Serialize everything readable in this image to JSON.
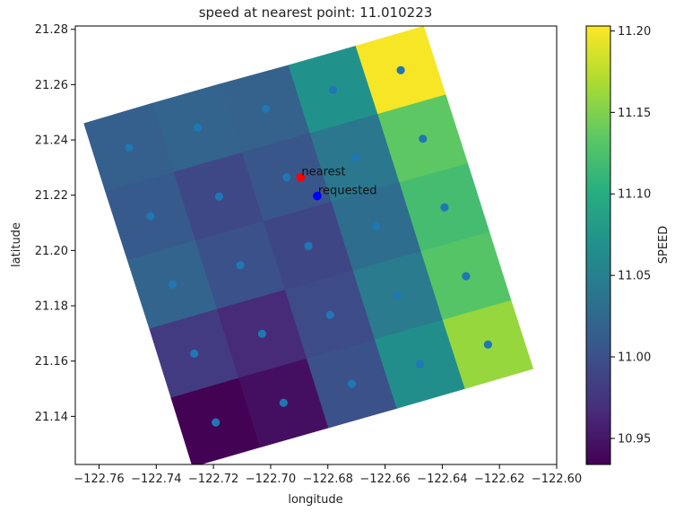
{
  "chart_data": {
    "type": "heatmap",
    "title": "speed at nearest point: 11.010223",
    "xlabel": "longitude",
    "ylabel": "latitude",
    "colorbar_label": "SPEED",
    "colormap": "viridis",
    "xlim": [
      -122.7683,
      -122.6
    ],
    "ylim": [
      21.1226,
      21.2812
    ],
    "clim": [
      10.934,
      11.203
    ],
    "x_ticks": [
      -122.76,
      -122.74,
      -122.72,
      -122.7,
      -122.68,
      -122.66,
      -122.64,
      -122.62,
      -122.6
    ],
    "x_tick_labels": [
      "−122.76",
      "−122.74",
      "−122.72",
      "−122.70",
      "−122.68",
      "−122.66",
      "−122.64",
      "−122.62",
      "−122.60"
    ],
    "y_ticks": [
      21.14,
      21.16,
      21.18,
      21.2,
      21.22,
      21.24,
      21.26,
      21.28
    ],
    "y_tick_labels": [
      "21.14",
      "21.16",
      "21.18",
      "21.20",
      "21.22",
      "21.24",
      "21.26",
      "21.28"
    ],
    "colorbar_ticks": [
      10.95,
      11.0,
      11.05,
      11.1,
      11.15,
      11.2
    ],
    "colorbar_tick_labels": [
      "10.95",
      "11.00",
      "11.05",
      "11.10",
      "11.15",
      "11.20"
    ],
    "grid": {
      "rows": 5,
      "cols": 5,
      "row_order": "top-to-bottom",
      "col_order": "left-to-right",
      "speed": [
        [
          11.015,
          11.02,
          11.018,
          11.07,
          11.2
        ],
        [
          11.01,
          10.992,
          11.005,
          11.04,
          11.135
        ],
        [
          11.02,
          11.0,
          10.99,
          11.03,
          11.12
        ],
        [
          10.98,
          10.965,
          10.995,
          11.045,
          11.13
        ],
        [
          10.935,
          10.945,
          11.0,
          11.065,
          11.16
        ]
      ],
      "centers": [
        [
          [
            -122.7495,
            21.2372
          ],
          [
            -122.7255,
            21.2445
          ],
          [
            -122.7017,
            21.2513
          ],
          [
            -122.6782,
            21.2581
          ],
          [
            -122.6545,
            21.2652
          ]
        ],
        [
          [
            -122.742,
            21.2124
          ],
          [
            -122.718,
            21.2195
          ],
          [
            -122.6944,
            21.2265
          ],
          [
            -122.6705,
            21.2336
          ],
          [
            -122.6468,
            21.2404
          ]
        ],
        [
          [
            -122.7343,
            21.1877
          ],
          [
            -122.7106,
            21.1947
          ],
          [
            -122.6868,
            21.2016
          ],
          [
            -122.6631,
            21.2088
          ],
          [
            -122.6392,
            21.2156
          ]
        ],
        [
          [
            -122.7267,
            21.1627
          ],
          [
            -122.703,
            21.1699
          ],
          [
            -122.6792,
            21.1767
          ],
          [
            -122.6556,
            21.1838
          ],
          [
            -122.6317,
            21.1907
          ]
        ],
        [
          [
            -122.7192,
            21.1378
          ],
          [
            -122.6955,
            21.1449
          ],
          [
            -122.6716,
            21.1518
          ],
          [
            -122.6478,
            21.1589
          ],
          [
            -122.624,
            21.166
          ]
        ]
      ]
    },
    "points": [
      {
        "label": "nearest",
        "lon": -122.6895,
        "lat": 21.2265,
        "color": "#ff0000"
      },
      {
        "label": "requested",
        "lon": -122.6837,
        "lat": 21.2197,
        "color": "#0000ff"
      }
    ],
    "center_marker_color": "#1f77b4"
  }
}
